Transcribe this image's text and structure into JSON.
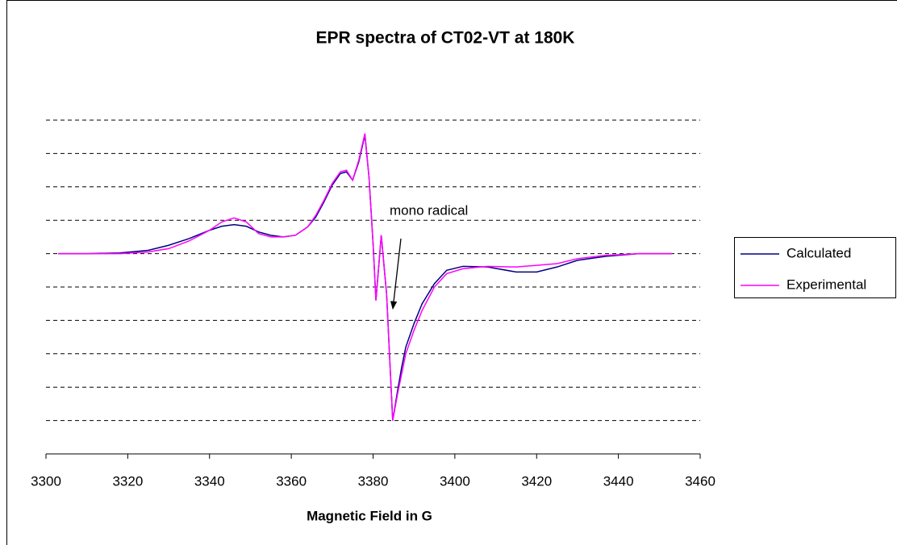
{
  "chart_data": {
    "type": "line",
    "title": "EPR spectra of CT02-VT at 180K",
    "x_label": "Magnetic Field in G",
    "x": [
      3303,
      3310,
      3318,
      3325,
      3330,
      3335,
      3340,
      3343,
      3346,
      3349,
      3352,
      3355,
      3358,
      3361,
      3364,
      3366,
      3368,
      3370,
      3372,
      3373.5,
      3375,
      3376.5,
      3378,
      3379,
      3380,
      3380.7,
      3382,
      3383.3,
      3384.8,
      3386,
      3387,
      3388,
      3390,
      3392,
      3395,
      3398,
      3402,
      3408,
      3415,
      3420,
      3425,
      3430,
      3437,
      3445,
      3453
    ],
    "series": [
      {
        "name": "Calculated",
        "color": "#000080",
        "values": [
          0,
          0,
          0.02,
          0.1,
          0.25,
          0.45,
          0.7,
          0.82,
          0.87,
          0.82,
          0.65,
          0.55,
          0.5,
          0.55,
          0.8,
          1.1,
          1.55,
          2.05,
          2.4,
          2.45,
          2.2,
          2.75,
          3.55,
          2.3,
          0.3,
          -1.4,
          0.55,
          -1.2,
          -5.0,
          -4.1,
          -3.4,
          -2.8,
          -2.1,
          -1.5,
          -0.9,
          -0.5,
          -0.38,
          -0.4,
          -0.55,
          -0.55,
          -0.4,
          -0.2,
          -0.08,
          0,
          0
        ]
      },
      {
        "name": "Experimental",
        "color": "#ff00ff",
        "values": [
          0,
          0,
          0,
          0.05,
          0.15,
          0.38,
          0.7,
          0.95,
          1.07,
          0.95,
          0.6,
          0.5,
          0.5,
          0.55,
          0.8,
          1.15,
          1.6,
          2.1,
          2.45,
          2.5,
          2.2,
          2.8,
          3.6,
          2.3,
          0.3,
          -1.4,
          0.55,
          -1.2,
          -5.0,
          -4.2,
          -3.6,
          -3.0,
          -2.3,
          -1.7,
          -1.0,
          -0.6,
          -0.45,
          -0.38,
          -0.4,
          -0.35,
          -0.3,
          -0.15,
          -0.05,
          0,
          0
        ]
      }
    ],
    "annotations": [
      {
        "text": "mono radical"
      }
    ],
    "xlim": [
      3300,
      3460
    ],
    "xticks": [
      3300,
      3320,
      3340,
      3360,
      3380,
      3400,
      3420,
      3440,
      3460
    ],
    "ylim": [
      -6,
      4
    ],
    "yticks": [
      -6,
      -5,
      -4,
      -3,
      -2,
      -1,
      0,
      1,
      2,
      3,
      4
    ],
    "grid": true,
    "legend": "right"
  }
}
